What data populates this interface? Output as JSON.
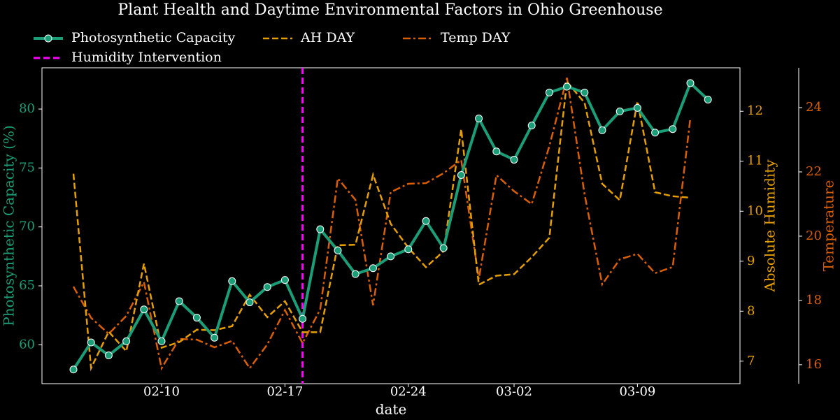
{
  "chart_data": {
    "type": "line",
    "title": "Plant Health and Daytime Environmental Factors in Ohio Greenhouse",
    "xlabel": "date",
    "ylabel": "Photosynthetic Capacity (%)",
    "y2label": "Absolute Humidity",
    "y3label": "Temperature",
    "x": [
      "02-05",
      "02-06",
      "02-07",
      "02-08",
      "02-09",
      "02-10",
      "02-11",
      "02-12",
      "02-13",
      "02-14",
      "02-15",
      "02-16",
      "02-17",
      "02-18",
      "02-19",
      "02-20",
      "02-21",
      "02-22",
      "02-23",
      "02-24",
      "02-25",
      "02-26",
      "02-27",
      "02-28",
      "03-01",
      "03-02",
      "03-03",
      "03-04",
      "03-05",
      "03-06",
      "03-07",
      "03-08",
      "03-09",
      "03-10",
      "03-11",
      "03-12",
      "03-13"
    ],
    "xticks": [
      "02-10",
      "02-17",
      "02-24",
      "03-02",
      "03-09"
    ],
    "ylim": [
      56.7,
      83.5
    ],
    "yticks": [
      60,
      65,
      70,
      75,
      80
    ],
    "y2lim": [
      6.55,
      12.87
    ],
    "y2ticks": [
      7,
      8,
      9,
      10,
      11,
      12
    ],
    "y3lim": [
      15.41,
      25.24
    ],
    "y3ticks": [
      16,
      18,
      20,
      22,
      24
    ],
    "series": [
      {
        "name": "Photosynthetic Capacity",
        "color": "#1b9e77",
        "axis": "y",
        "linestyle": "solid",
        "marker": "o",
        "values": [
          57.9,
          60.2,
          59.1,
          60.3,
          63.0,
          60.3,
          63.7,
          62.3,
          60.6,
          65.4,
          63.6,
          64.9,
          65.5,
          62.2,
          69.8,
          68.0,
          66.0,
          66.5,
          67.5,
          68.1,
          70.5,
          68.2,
          74.4,
          79.2,
          76.4,
          75.7,
          78.6,
          81.4,
          81.9,
          81.4,
          78.2,
          79.8,
          80.1,
          78.0,
          78.3,
          82.2,
          80.8
        ]
      },
      {
        "name": "AH DAY",
        "color": "#e69f00",
        "axis": "y2",
        "linestyle": "dashed",
        "values": [
          10.75,
          6.86,
          7.59,
          7.2,
          8.95,
          7.27,
          7.38,
          7.63,
          7.62,
          7.7,
          8.33,
          7.88,
          8.2,
          7.58,
          7.58,
          9.32,
          9.33,
          10.73,
          9.75,
          9.27,
          8.88,
          9.2,
          11.64,
          8.53,
          8.71,
          8.74,
          9.08,
          9.47,
          12.59,
          12.17,
          10.55,
          10.22,
          12.2,
          10.38,
          10.3,
          10.27,
          null
        ]
      },
      {
        "name": "Temp DAY",
        "color": "#d95f02",
        "axis": "y3",
        "linestyle": "dashdot",
        "values": [
          18.43,
          17.46,
          16.96,
          17.52,
          18.57,
          15.89,
          16.8,
          16.78,
          16.54,
          16.74,
          15.89,
          16.63,
          17.7,
          16.67,
          17.72,
          21.8,
          21.13,
          17.85,
          21.37,
          21.63,
          21.65,
          21.96,
          22.37,
          18.67,
          21.9,
          21.4,
          21.0,
          22.8,
          24.93,
          21.3,
          18.5,
          19.28,
          19.45,
          18.85,
          19.04,
          23.67,
          null
        ]
      }
    ],
    "intervention": {
      "name": "Humidity Intervention",
      "x": "02-18",
      "color": "#ff00ff"
    },
    "legend": "top-left"
  }
}
